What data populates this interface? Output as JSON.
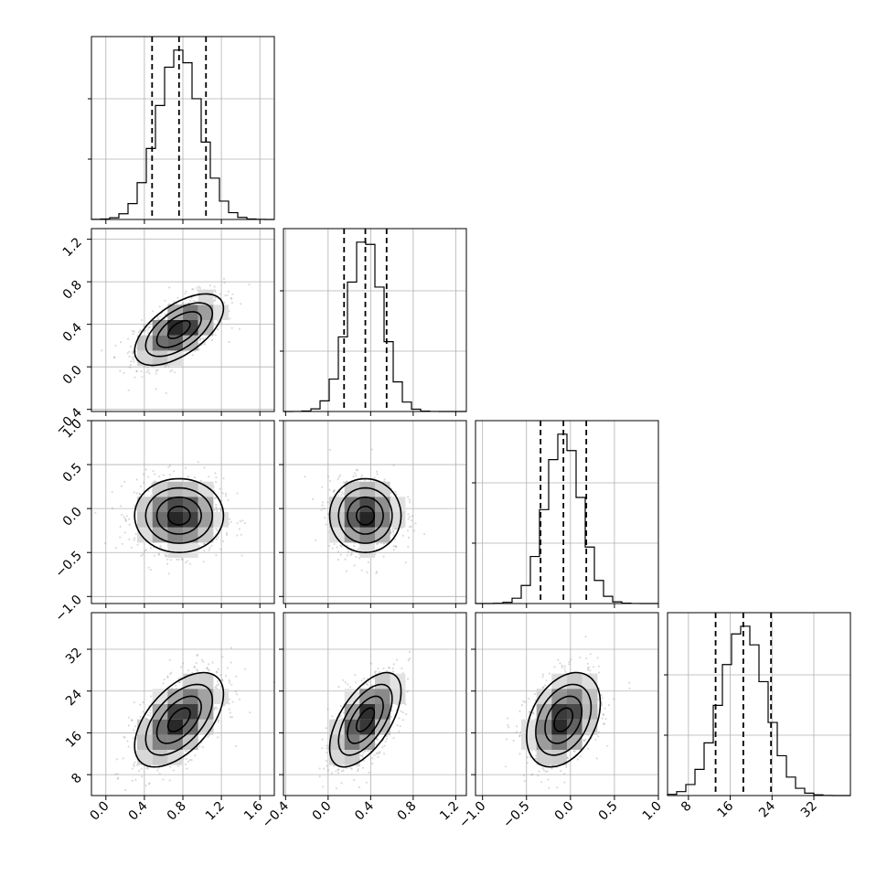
{
  "chart_data": {
    "type": "corner",
    "grid": true,
    "params": [
      {
        "range": [
          -0.15,
          1.75
        ],
        "ticks": [
          0.0,
          0.4,
          0.8,
          1.2,
          1.6
        ],
        "tick_labels": [
          "0.0",
          "0.4",
          "0.8",
          "1.2",
          "1.6"
        ],
        "mean": 0.76,
        "sd": 0.22,
        "quantiles": [
          0.48,
          0.76,
          1.04
        ]
      },
      {
        "range": [
          -0.42,
          1.3
        ],
        "ticks": [
          -0.4,
          0.0,
          0.4,
          0.8,
          1.2
        ],
        "tick_labels": [
          "−0.4",
          "0.0",
          "0.4",
          "0.8",
          "1.2"
        ],
        "mean": 0.35,
        "sd": 0.16,
        "quantiles": [
          0.15,
          0.35,
          0.55
        ]
      },
      {
        "range": [
          -1.08,
          1.0
        ],
        "ticks": [
          -1.0,
          -0.5,
          0.0,
          0.5,
          1.0
        ],
        "tick_labels": [
          "−1.0",
          "−0.5",
          "0.0",
          "0.5",
          "1.0"
        ],
        "mean": -0.08,
        "sd": 0.2,
        "quantiles": [
          -0.34,
          -0.08,
          0.18
        ]
      },
      {
        "range": [
          4.0,
          39.0
        ],
        "ticks": [
          8,
          16,
          24,
          32
        ],
        "tick_labels": [
          "8",
          "16",
          "24",
          "32"
        ],
        "mean": 18.5,
        "sd": 4.3,
        "quantiles": [
          13.2,
          18.5,
          23.8
        ]
      }
    ],
    "correlations": [
      [
        1.0,
        0.6,
        0.0,
        0.55
      ],
      [
        0.6,
        1.0,
        0.0,
        0.6
      ],
      [
        0.0,
        0.0,
        1.0,
        0.35
      ],
      [
        0.55,
        0.6,
        0.35,
        1.0
      ]
    ],
    "contour_levels_sigma": [
      0.5,
      1.0,
      1.5,
      2.0
    ],
    "histogram_bins": 20,
    "scatter_points": 900
  }
}
